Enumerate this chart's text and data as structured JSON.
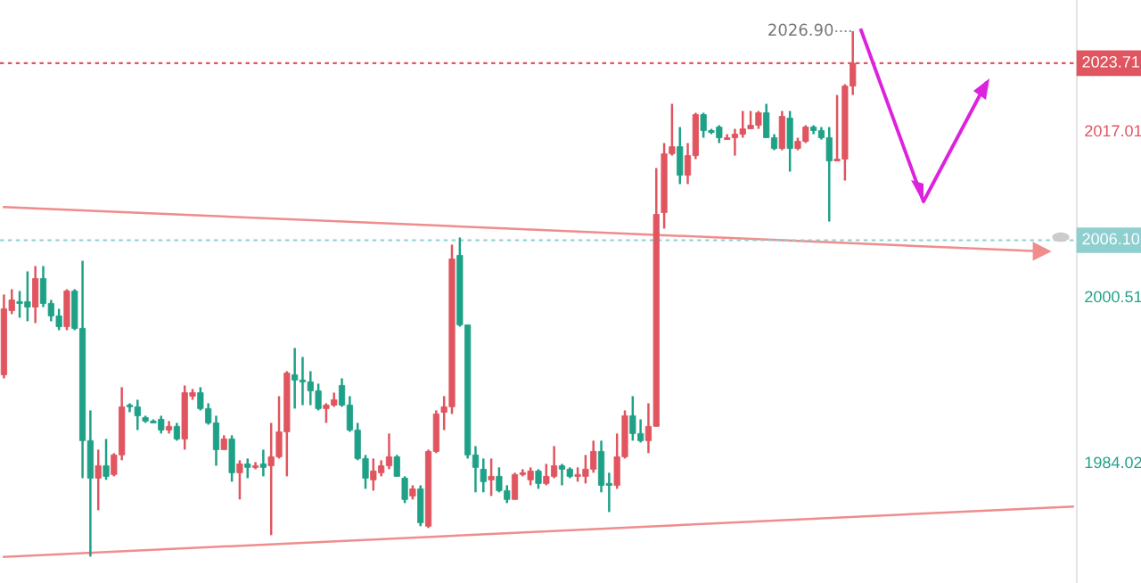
{
  "chart_data": {
    "type": "candlestick",
    "categories": [
      null,
      null,
      null,
      null,
      null,
      null,
      null,
      null,
      null,
      null,
      null,
      null,
      null,
      null,
      null,
      null,
      null,
      null,
      null,
      null,
      null,
      null,
      null,
      null,
      null,
      null,
      null,
      null,
      null,
      null,
      null,
      null,
      null,
      null,
      null,
      null,
      null,
      null,
      null,
      null,
      null,
      null,
      null,
      null,
      null,
      null,
      null,
      null,
      null,
      null,
      null,
      null,
      null,
      null,
      null,
      null,
      null,
      null,
      null,
      null,
      null,
      null,
      null,
      null,
      null,
      null,
      null,
      null,
      null,
      null,
      null,
      null,
      null,
      null,
      null,
      null,
      null,
      null,
      null,
      null,
      null,
      null,
      null,
      null,
      null,
      null,
      null,
      null,
      null,
      null,
      null,
      null,
      null,
      null,
      null,
      null,
      null,
      null,
      null,
      null,
      null,
      null,
      null,
      null,
      null,
      null,
      null,
      null,
      null,
      null,
      null,
      null,
      null,
      null,
      null,
      null,
      null,
      null,
      null,
      null,
      null,
      null,
      null,
      null,
      null,
      null,
      null,
      null,
      null,
      null,
      null,
      null,
      null,
      null,
      null,
      null,
      null
    ],
    "ohlc": [
      [
        1992.72,
        2000.7,
        1992.36,
        1999.28
      ],
      [
        1999.1,
        2001.23,
        1998.75,
        2000.16
      ],
      [
        1999.99,
        2001.05,
        1998.39,
        1999.81
      ],
      [
        1999.99,
        2003.0,
        1998.04,
        1999.45
      ],
      [
        1999.45,
        2003.53,
        1997.86,
        2002.29
      ],
      [
        2002.29,
        2003.53,
        1999.45,
        1999.81
      ],
      [
        1999.81,
        2000.16,
        1998.04,
        1998.57
      ],
      [
        1998.57,
        1999.28,
        1997.15,
        1997.5
      ],
      [
        1997.5,
        2001.23,
        1997.15,
        2001.05
      ],
      [
        2001.05,
        2001.23,
        1997.15,
        1997.33
      ],
      [
        1997.33,
        2004.06,
        1982.43,
        1986.16
      ],
      [
        1986.16,
        1989.17,
        1974.63,
        1982.43
      ],
      [
        1982.43,
        1985.27,
        1979.24,
        1983.67
      ],
      [
        1983.67,
        1986.33,
        1982.26,
        1982.61
      ],
      [
        1982.79,
        1984.92,
        1982.61,
        1984.74
      ],
      [
        1984.74,
        1991.48,
        1984.21,
        1989.53
      ],
      [
        1989.7,
        1989.88,
        1988.99,
        1989.53
      ],
      [
        1989.53,
        1990.23,
        1987.22,
        1988.64
      ],
      [
        1988.46,
        1988.64,
        1987.93,
        1988.11
      ],
      [
        1988.11,
        1988.28,
        1987.93,
        1987.93
      ],
      [
        1988.28,
        1988.64,
        1986.87,
        1987.22
      ],
      [
        1987.22,
        1988.11,
        1986.87,
        1987.58
      ],
      [
        1987.58,
        1987.93,
        1986.16,
        1986.33
      ],
      [
        1986.33,
        1991.65,
        1985.27,
        1990.94
      ],
      [
        1990.59,
        1991.3,
        1990.23,
        1990.94
      ],
      [
        1990.94,
        1991.48,
        1989.17,
        1989.35
      ],
      [
        1989.35,
        1989.88,
        1987.75,
        1987.93
      ],
      [
        1987.93,
        1988.64,
        1983.67,
        1985.27
      ],
      [
        1985.27,
        1986.69,
        1985.27,
        1986.33
      ],
      [
        1986.33,
        1986.69,
        1982.08,
        1982.97
      ],
      [
        1982.97,
        1984.21,
        1980.31,
        1983.85
      ],
      [
        1983.85,
        1984.38,
        1982.43,
        1983.5
      ],
      [
        1983.5,
        1984.03,
        1983.32,
        1983.67
      ],
      [
        1983.85,
        1985.27,
        1982.61,
        1983.5
      ],
      [
        1983.67,
        1987.93,
        1976.76,
        1984.56
      ],
      [
        1984.56,
        1990.59,
        1984.38,
        1987.04
      ],
      [
        1987.04,
        1993.07,
        1982.61,
        1992.89
      ],
      [
        1992.72,
        1995.38,
        1989.35,
        1992.19
      ],
      [
        1992.19,
        1994.49,
        1989.7,
        1992.01
      ],
      [
        1992.01,
        1993.07,
        1989.7,
        1991.12
      ],
      [
        1991.12,
        1991.83,
        1989.17,
        1989.35
      ],
      [
        1989.35,
        1989.88,
        1987.93,
        1989.7
      ],
      [
        1989.7,
        1990.94,
        1989.53,
        1990.23
      ],
      [
        1991.65,
        1992.36,
        1989.53,
        1989.7
      ],
      [
        1989.7,
        1990.59,
        1987.04,
        1987.22
      ],
      [
        1987.22,
        1987.93,
        1984.21,
        1984.38
      ],
      [
        1984.38,
        1984.74,
        1981.37,
        1982.43
      ],
      [
        1982.26,
        1984.38,
        1981.19,
        1983.14
      ],
      [
        1982.97,
        1984.21,
        1982.61,
        1983.67
      ],
      [
        1983.67,
        1986.87,
        1983.32,
        1984.56
      ],
      [
        1984.56,
        1984.74,
        1982.61,
        1982.61
      ],
      [
        1982.43,
        1982.61,
        1979.95,
        1980.31
      ],
      [
        1980.66,
        1981.72,
        1980.31,
        1981.37
      ],
      [
        1981.37,
        1981.72,
        1977.65,
        1978.0
      ],
      [
        1977.65,
        1985.27,
        1977.47,
        1985.09
      ],
      [
        1985.09,
        1989.17,
        1984.92,
        1988.82
      ],
      [
        1988.99,
        1990.59,
        1987.22,
        1989.53
      ],
      [
        1989.53,
        2005.66,
        1988.82,
        2004.24
      ],
      [
        2004.6,
        2006.37,
        1997.5,
        1997.68
      ],
      [
        1997.68,
        1997.68,
        1984.38,
        1984.74
      ],
      [
        1984.74,
        1985.62,
        1981.02,
        1983.5
      ],
      [
        1983.32,
        1984.38,
        1981.02,
        1982.08
      ],
      [
        1982.26,
        1984.38,
        1980.66,
        1982.61
      ],
      [
        1982.61,
        1983.5,
        1981.02,
        1981.19
      ],
      [
        1981.19,
        1981.72,
        1979.95,
        1980.31
      ],
      [
        1980.31,
        1982.97,
        1980.31,
        1982.79
      ],
      [
        1982.79,
        1983.32,
        1982.61,
        1982.97
      ],
      [
        1982.26,
        1983.5,
        1981.72,
        1983.14
      ],
      [
        1983.14,
        1983.32,
        1981.37,
        1981.9
      ],
      [
        1981.9,
        1983.85,
        1981.72,
        1982.61
      ],
      [
        1982.61,
        1985.62,
        1982.43,
        1983.67
      ],
      [
        1983.67,
        1983.85,
        1981.72,
        1983.32
      ],
      [
        1983.32,
        1983.5,
        1982.43,
        1982.61
      ],
      [
        1982.61,
        1983.5,
        1982.08,
        1982.79
      ],
      [
        1982.61,
        1984.74,
        1981.9,
        1983.32
      ],
      [
        1983.32,
        1986.16,
        1982.97,
        1985.09
      ],
      [
        1985.09,
        1986.16,
        1981.02,
        1981.72
      ],
      [
        1981.9,
        1982.97,
        1979.06,
        1981.72
      ],
      [
        1981.72,
        1986.87,
        1981.37,
        1984.56
      ],
      [
        1984.56,
        1989.17,
        1984.38,
        1988.64
      ],
      [
        1988.64,
        1990.59,
        1986.16,
        1986.87
      ],
      [
        1986.87,
        1988.28,
        1985.98,
        1986.16
      ],
      [
        1986.16,
        1989.88,
        1984.92,
        1987.58
      ],
      [
        1987.58,
        2013.28,
        1987.58,
        2008.67
      ],
      [
        2008.85,
        2015.77,
        2007.26,
        2014.7
      ],
      [
        2014.7,
        2019.67,
        2014.52,
        2015.41
      ],
      [
        2015.41,
        2017.36,
        2011.69,
        2012.57
      ],
      [
        2012.57,
        2015.77,
        2011.69,
        2014.52
      ],
      [
        2014.52,
        2018.78,
        2014.17,
        2018.6
      ],
      [
        2018.6,
        2018.78,
        2016.3,
        2017.01
      ],
      [
        2017.01,
        2017.18,
        2016.65,
        2016.83
      ],
      [
        2017.36,
        2017.54,
        2015.77,
        2016.3
      ],
      [
        2016.12,
        2016.65,
        2016.12,
        2016.3
      ],
      [
        2016.3,
        2017.18,
        2014.52,
        2016.65
      ],
      [
        2016.65,
        2018.96,
        2016.3,
        2017.18
      ],
      [
        2017.18,
        2018.96,
        2017.18,
        2017.54
      ],
      [
        2017.54,
        2018.96,
        2017.18,
        2018.78
      ],
      [
        2018.78,
        2019.67,
        2016.3,
        2016.3
      ],
      [
        2016.3,
        2016.65,
        2015.06,
        2015.23
      ],
      [
        2015.23,
        2018.96,
        2015.06,
        2018.43
      ],
      [
        2018.25,
        2018.96,
        2012.93,
        2015.23
      ],
      [
        2015.23,
        2016.3,
        2015.06,
        2015.94
      ],
      [
        2015.94,
        2017.54,
        2015.77,
        2017.36
      ],
      [
        2017.36,
        2017.54,
        2016.65,
        2017.01
      ],
      [
        2017.01,
        2017.36,
        2016.12,
        2016.3
      ],
      [
        2016.3,
        2017.36,
        2007.96,
        2013.99
      ],
      [
        2013.99,
        2020.55,
        2013.99,
        2014.17
      ],
      [
        2014.17,
        2021.62,
        2012.04,
        2021.44
      ],
      [
        2021.44,
        2026.9,
        2020.55,
        2023.71
      ],
      null,
      null,
      null,
      null,
      null,
      null,
      null,
      null,
      null,
      null,
      null,
      null,
      null,
      null,
      null,
      null,
      null,
      null,
      null,
      null,
      null,
      null,
      null,
      null,
      null,
      null,
      null,
      null
    ],
    "colors": [
      "#e0555f",
      "#e0555f",
      "#1fa187",
      "#1fa187",
      "#e0555f",
      "#1fa187",
      "#1fa187",
      "#1fa187",
      "#e0555f",
      "#1fa187",
      "#1fa187",
      "#1fa187",
      "#e0555f",
      "#1fa187",
      "#e0555f",
      "#e0555f",
      "#1fa187",
      "#1fa187",
      "#1fa187",
      "#1fa187",
      "#1fa187",
      "#e0555f",
      "#1fa187",
      "#e0555f",
      "#e0555f",
      "#1fa187",
      "#1fa187",
      "#1fa187",
      "#e0555f",
      "#1fa187",
      "#e0555f",
      "#1fa187",
      "#e0555f",
      "#1fa187",
      "#e0555f",
      "#e0555f",
      "#e0555f",
      "#1fa187",
      "#1fa187",
      "#1fa187",
      "#1fa187",
      "#e0555f",
      "#e0555f",
      "#1fa187",
      "#1fa187",
      "#1fa187",
      "#1fa187",
      "#e0555f",
      "#e0555f",
      "#e0555f",
      "#1fa187",
      "#1fa187",
      "#e0555f",
      "#1fa187",
      "#e0555f",
      "#e0555f",
      "#e0555f",
      "#e0555f",
      "#1fa187",
      "#1fa187",
      "#1fa187",
      "#1fa187",
      "#e0555f",
      "#1fa187",
      "#1fa187",
      "#e0555f",
      "#e0555f",
      "#e0555f",
      "#1fa187",
      "#e0555f",
      "#e0555f",
      "#1fa187",
      "#1fa187",
      "#e0555f",
      "#e0555f",
      "#e0555f",
      "#1fa187",
      "#1fa187",
      "#e0555f",
      "#e0555f",
      "#1fa187",
      "#1fa187",
      "#e0555f",
      "#e0555f",
      "#e0555f",
      "#e0555f",
      "#1fa187",
      "#e0555f",
      "#e0555f",
      "#1fa187",
      "#1fa187",
      "#1fa187",
      "#e0555f",
      "#e0555f",
      "#e0555f",
      "#e0555f",
      "#e0555f",
      "#1fa187",
      "#1fa187",
      "#e0555f",
      "#1fa187",
      "#e0555f",
      "#e0555f",
      "#1fa187",
      "#1fa187",
      "#1fa187",
      "#e0555f",
      "#e0555f",
      "#e0555f",
      null,
      null,
      null,
      null,
      null,
      null,
      null,
      null,
      null,
      null,
      null,
      null,
      null,
      null,
      null,
      null,
      null,
      null,
      null,
      null,
      null,
      null,
      null,
      null,
      null,
      null,
      null,
      null
    ],
    "ylim": [
      1972.0,
      2030.0
    ],
    "yticks": [
      1984.02,
      2000.51,
      2017.01
    ],
    "tick_labels": "y",
    "grid": false,
    "legend": false,
    "ref_lines": [
      {
        "axis": "y",
        "value": 2023.71,
        "label": "2023.71",
        "color": "#e0555f",
        "line_style": "dashed"
      },
      {
        "axis": "y",
        "value": 2006.1,
        "label": "2006.10",
        "color": "#8fcfcf",
        "line_style": "dashed"
      }
    ],
    "series": [
      {
        "type": "line",
        "color": "#f08c8c",
        "values": [
          2009.4,
          null,
          null,
          null,
          null,
          null,
          null,
          null,
          null,
          null,
          null,
          null,
          null,
          null,
          null,
          null,
          null,
          null,
          null,
          null,
          null,
          null,
          null,
          null,
          null,
          null,
          null,
          null,
          null,
          null,
          null,
          null,
          null,
          null,
          null,
          null,
          null,
          null,
          null,
          null,
          null,
          null,
          null,
          null,
          null,
          null,
          null,
          null,
          null,
          null,
          null,
          null,
          null,
          null,
          null,
          null,
          null,
          null,
          null,
          null,
          null,
          null,
          null,
          null,
          null,
          null,
          null,
          null,
          null,
          null,
          null,
          null,
          null,
          null,
          null,
          null,
          null,
          null,
          null,
          null,
          null,
          null,
          null,
          null,
          null,
          null,
          null,
          null,
          null,
          null,
          null,
          null,
          null,
          null,
          null,
          null,
          null,
          null,
          null,
          null,
          null,
          null,
          null,
          null,
          null,
          null,
          null,
          null,
          null,
          null,
          null,
          null,
          null,
          null,
          null,
          null,
          null,
          null,
          null,
          null,
          null,
          null,
          null,
          null,
          null,
          null,
          null,
          null,
          null,
          null,
          null,
          null,
          2005.0,
          null,
          null,
          null,
          null
        ]
      },
      {
        "type": "line",
        "color": "#f08c8c",
        "values": [
          1974.6,
          null,
          null,
          null,
          null,
          null,
          null,
          null,
          null,
          null,
          null,
          null,
          null,
          null,
          null,
          null,
          null,
          null,
          null,
          null,
          null,
          null,
          null,
          null,
          null,
          null,
          null,
          null,
          null,
          null,
          null,
          null,
          null,
          null,
          null,
          null,
          null,
          null,
          null,
          null,
          null,
          null,
          null,
          null,
          null,
          null,
          null,
          null,
          null,
          null,
          null,
          null,
          null,
          null,
          null,
          null,
          null,
          null,
          null,
          null,
          null,
          null,
          null,
          null,
          null,
          null,
          null,
          null,
          null,
          null,
          null,
          null,
          null,
          null,
          null,
          null,
          null,
          null,
          null,
          null,
          null,
          null,
          null,
          null,
          null,
          null,
          null,
          null,
          null,
          null,
          null,
          null,
          null,
          null,
          null,
          null,
          null,
          null,
          null,
          null,
          null,
          null,
          null,
          null,
          null,
          null,
          null,
          null,
          null,
          null,
          null,
          null,
          null,
          null,
          null,
          null,
          null,
          null,
          null,
          null,
          null,
          null,
          null,
          null,
          null,
          null,
          null,
          null,
          null,
          null,
          null,
          null,
          null,
          null,
          null,
          null,
          1979.6
        ]
      }
    ],
    "annotations": [
      "2026.90"
    ]
  }
}
